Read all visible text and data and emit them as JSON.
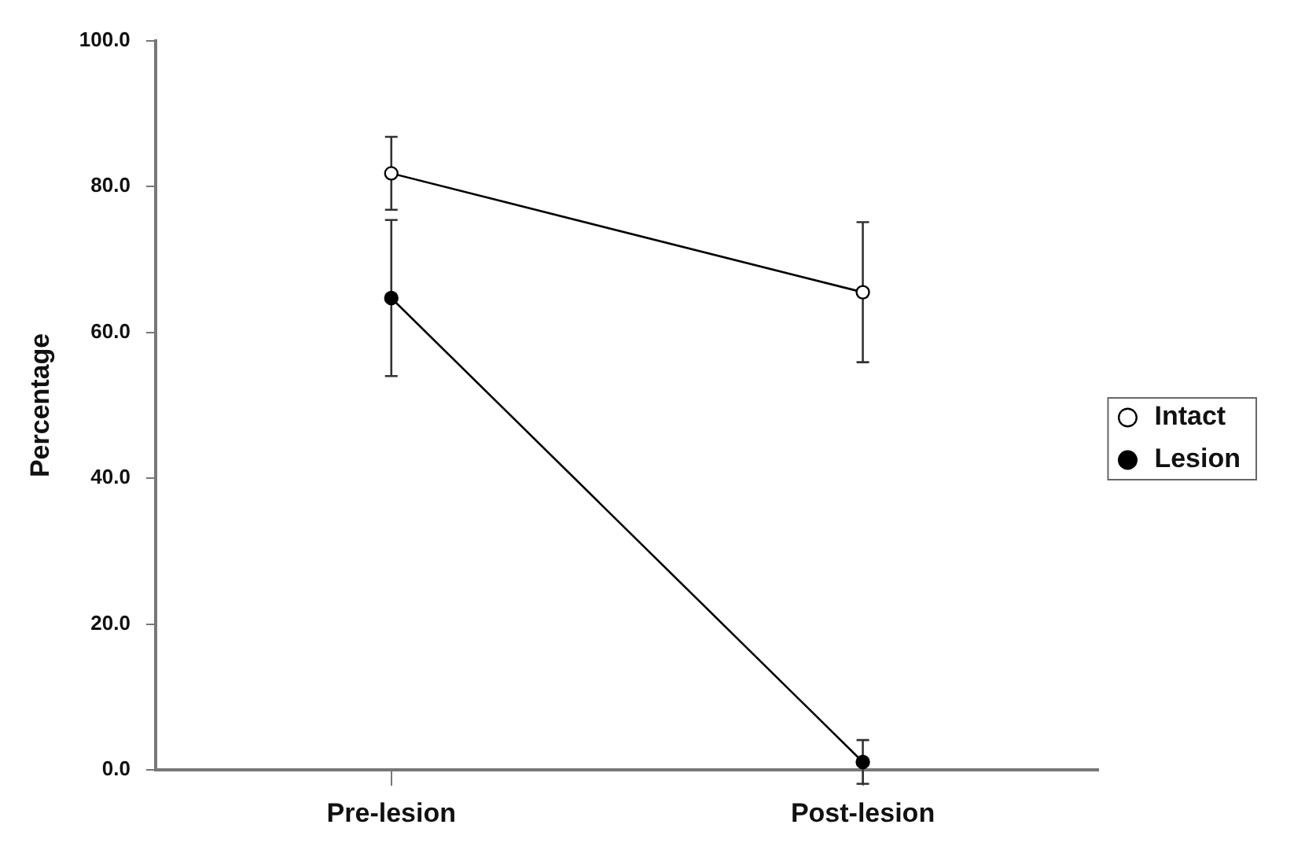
{
  "chart_data": {
    "type": "line",
    "ylabel": "Percentage",
    "categories": [
      "Pre-lesion",
      "Post-lesion"
    ],
    "series": [
      {
        "name": "Intact",
        "color": "#000000",
        "values": [
          81.8,
          65.5
        ],
        "errors": [
          5,
          9.6
        ]
      },
      {
        "name": "Lesion",
        "color": "#000000",
        "values": [
          64.7,
          1.1
        ],
        "errors": [
          10.7,
          3
        ]
      }
    ],
    "ylim": [
      0,
      100
    ],
    "yticks": [
      {
        "value": 0,
        "label": "0.0"
      },
      {
        "value": 20,
        "label": "20.0"
      },
      {
        "value": 40,
        "label": "40.0"
      },
      {
        "value": 60,
        "label": "60.0"
      },
      {
        "value": 80,
        "label": "80.0"
      },
      {
        "value": 100,
        "label": "100.0"
      }
    ],
    "grid": false,
    "legend": "right",
    "marker": "circle",
    "line_style": "solid"
  }
}
